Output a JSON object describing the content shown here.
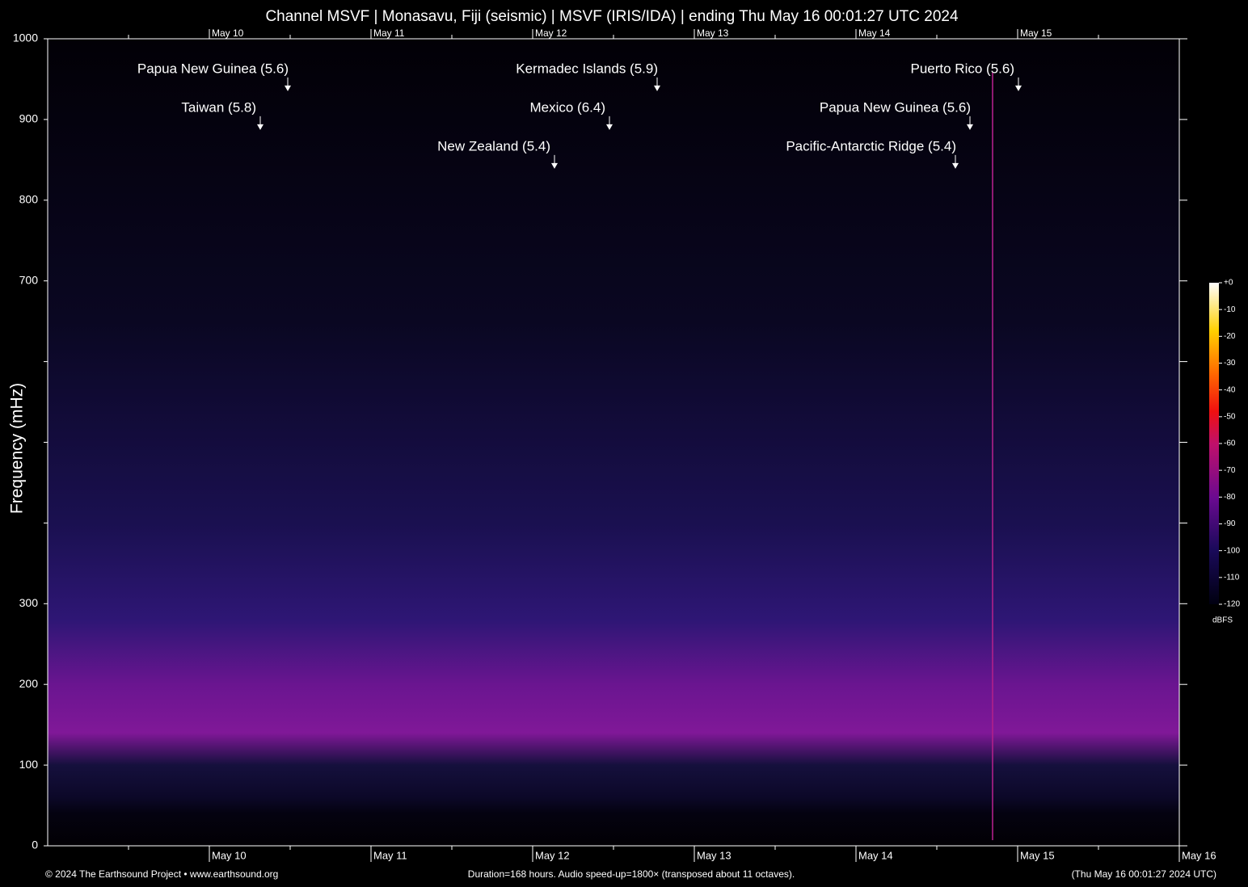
{
  "chart_data": {
    "type": "spectrogram",
    "title": "Channel MSVF | Monasavu, Fiji (seismic) | MSVF (IRIS/IDA) | ending Thu May 16 00:01:27 UTC 2024",
    "ylabel": "Frequency (mHz)",
    "xlim": [
      9,
      16
    ],
    "xticks": [
      {
        "value": 10,
        "label": "May 10"
      },
      {
        "value": 11,
        "label": "May 11"
      },
      {
        "value": 12,
        "label": "May 12"
      },
      {
        "value": 13,
        "label": "May 13"
      },
      {
        "value": 14,
        "label": "May 14"
      },
      {
        "value": 15,
        "label": "May 15"
      },
      {
        "value": 16,
        "label": "May 16"
      }
    ],
    "xminor": [
      9.5,
      10.5,
      11.5,
      12.5,
      13.5,
      14.5,
      15.5
    ],
    "ylim": [
      0,
      1000
    ],
    "yticks": [
      0,
      100,
      200,
      300,
      700,
      800,
      900,
      1000
    ],
    "yminor": [
      400,
      500,
      600
    ],
    "annotations": [
      {
        "text": "Papua New Guinea (5.6)",
        "x": 10.485,
        "y": 935
      },
      {
        "text": "Taiwan (5.8)",
        "x": 10.315,
        "y": 887
      },
      {
        "text": "Kermadec Islands (5.9)",
        "x": 12.77,
        "y": 935
      },
      {
        "text": "Mexico (6.4)",
        "x": 12.475,
        "y": 887
      },
      {
        "text": "New Zealand (5.4)",
        "x": 12.135,
        "y": 839
      },
      {
        "text": "Puerto Rico (5.6)",
        "x": 15.005,
        "y": 935
      },
      {
        "text": "Papua New Guinea (5.6)",
        "x": 14.705,
        "y": 887
      },
      {
        "text": "Pacific-Antarctic Ridge (5.4)",
        "x": 14.615,
        "y": 839
      }
    ],
    "colorbar": {
      "label": "dBFS",
      "lim": [
        -120,
        0
      ],
      "ticks": [
        {
          "value": 0,
          "label": "+0"
        },
        -10,
        -20,
        -30,
        -40,
        -50,
        -60,
        -70,
        -80,
        -90,
        -100,
        -110,
        -120
      ]
    },
    "footer": {
      "left": "© 2024 The Earthsound Project • www.earthsound.org",
      "center": "Duration=168 hours. Audio speed-up=1800× (transposed about 11 octaves).",
      "right": "(Thu May 16 00:01:27 2024 UTC)"
    }
  }
}
